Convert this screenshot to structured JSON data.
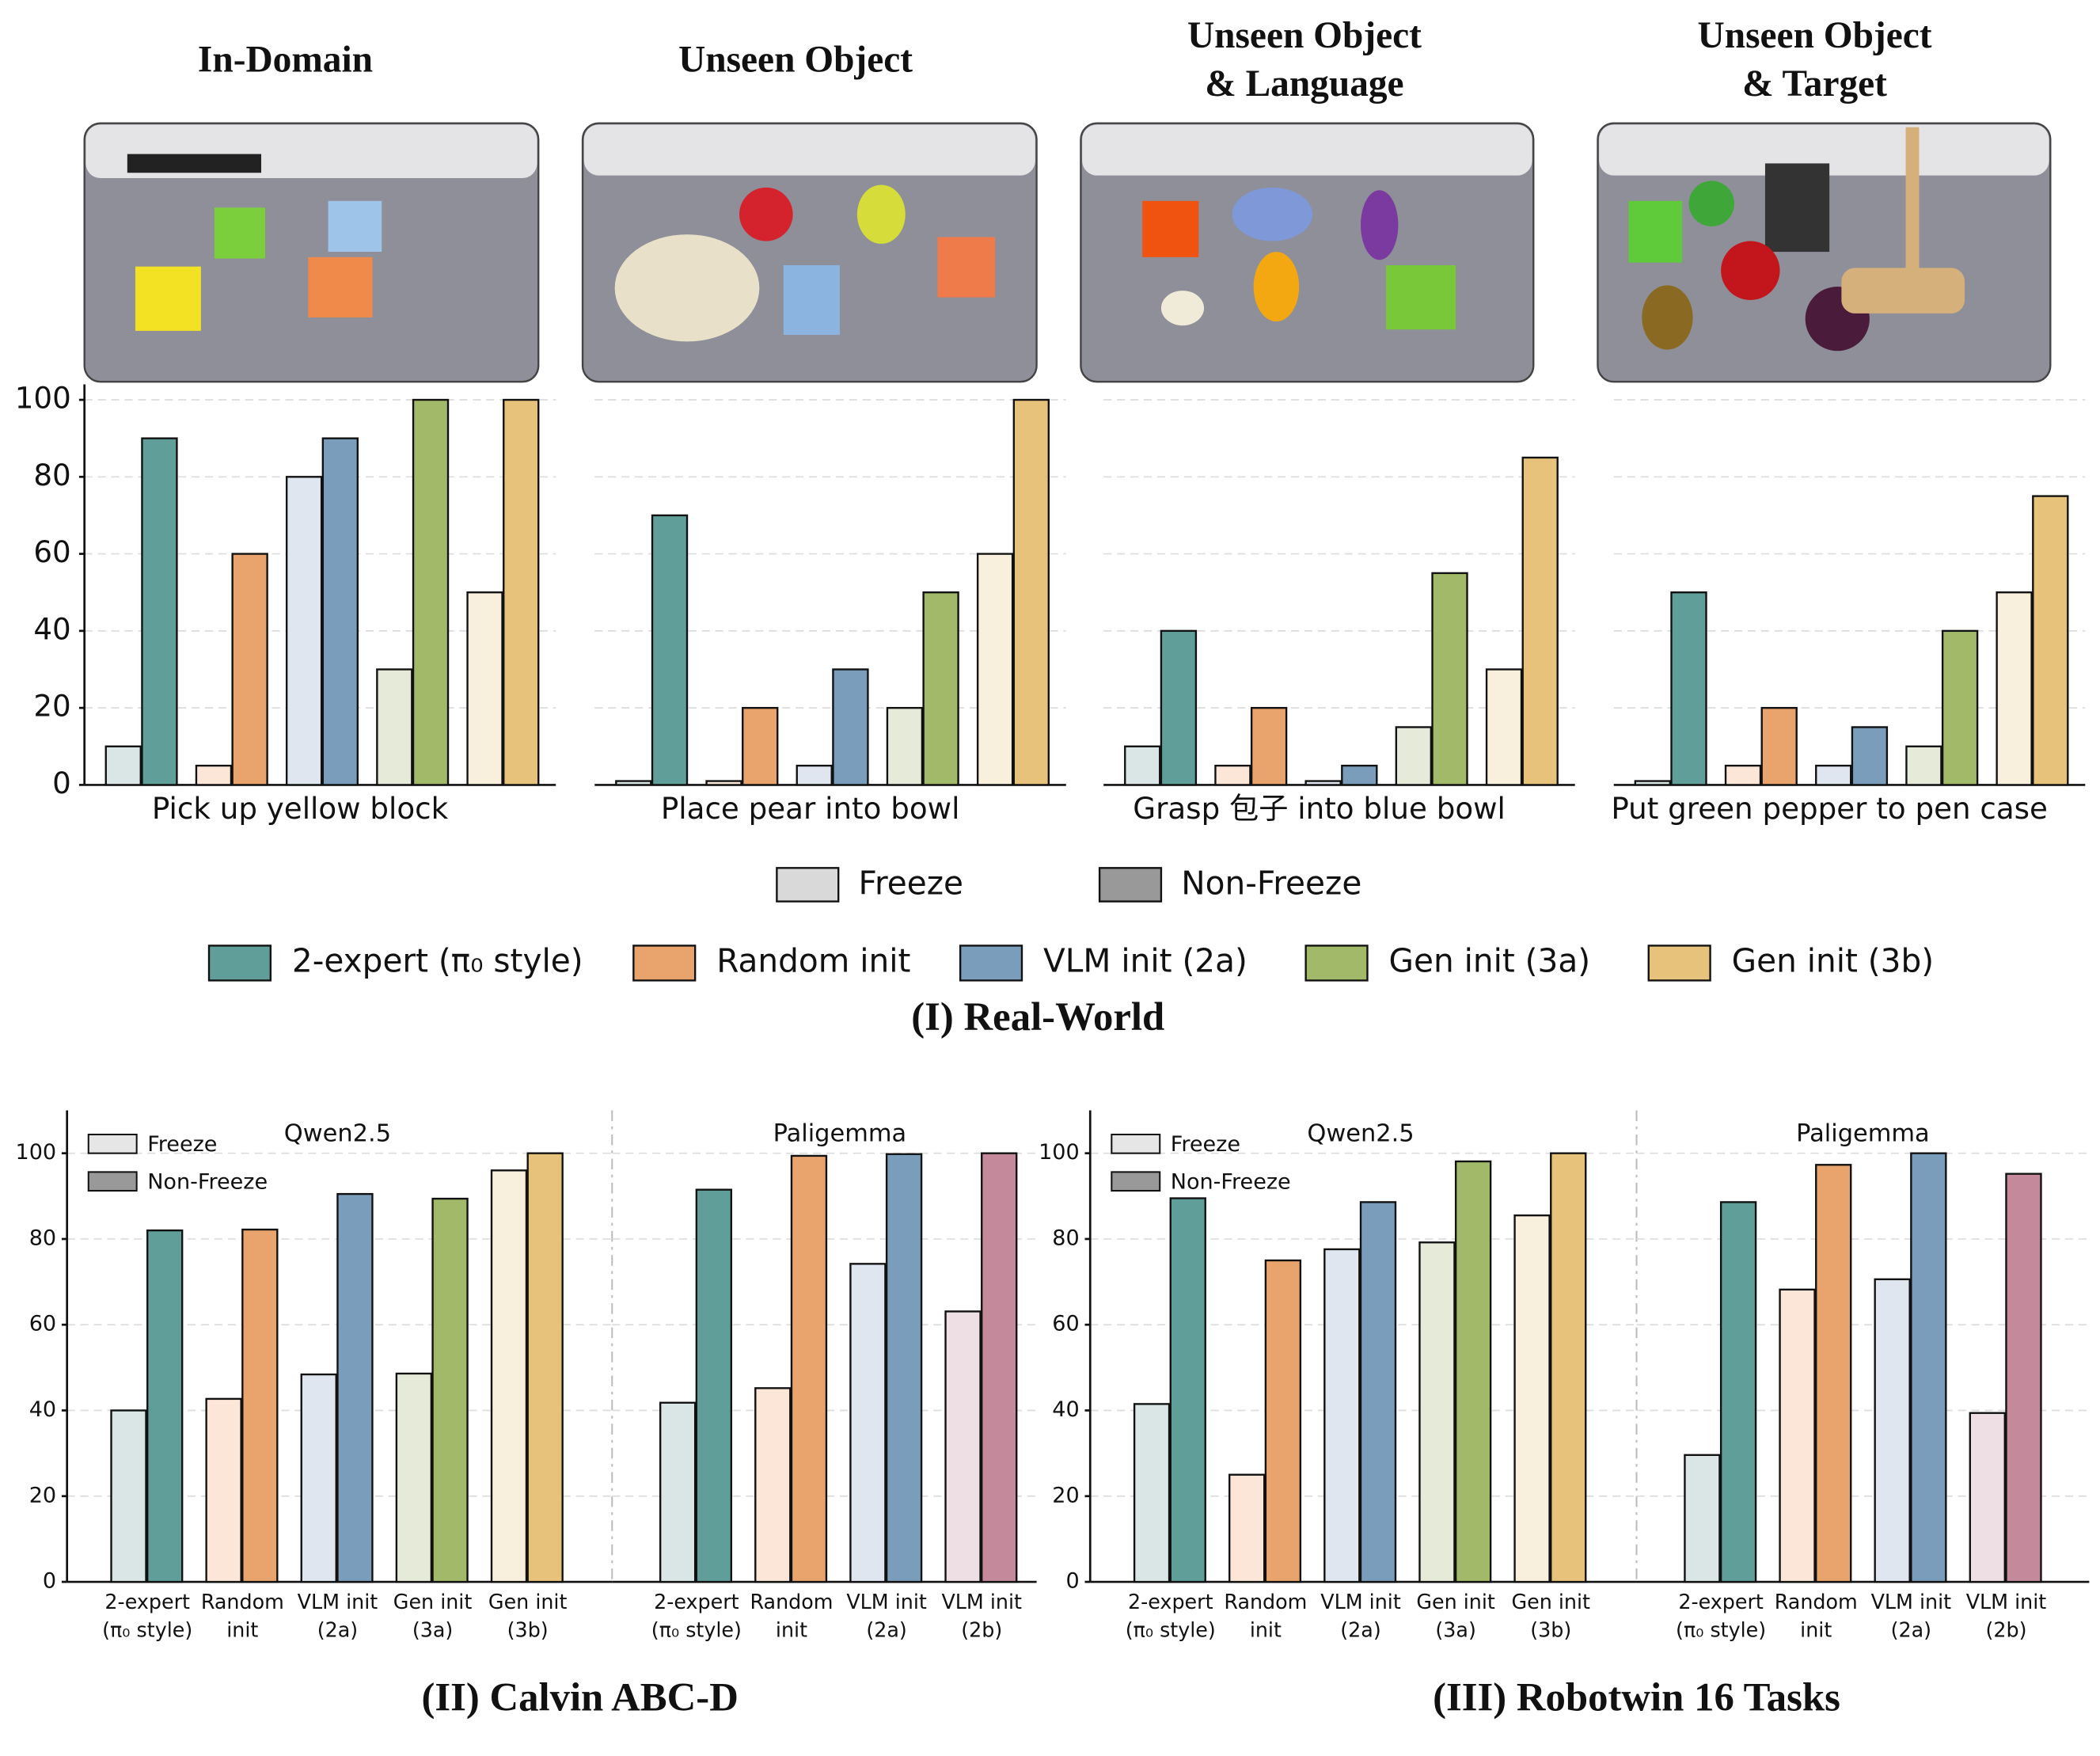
{
  "sections": [
    "(I) Real-World",
    "(II) Calvin ABC-D",
    "(III) Robotwin 16 Tasks"
  ],
  "legend": {
    "methods": [
      {
        "name": "2-expert (π₀ style)",
        "color": "#5f9e99"
      },
      {
        "name": "Random init",
        "color": "#e8a46c"
      },
      {
        "name": "VLM init (2a)",
        "color": "#7a9dbc"
      },
      {
        "name": "Gen init (3a)",
        "color": "#a2b96a"
      },
      {
        "name": "Gen init (3b)",
        "color": "#e6c27a"
      }
    ]
  },
  "chart_data": [
    {
      "type": "bar",
      "title": [
        "In-Domain"
      ],
      "xlabel": "Pick up yellow block",
      "ylim": [
        0,
        104
      ],
      "yticks": [
        0,
        20,
        40,
        60,
        80,
        100
      ],
      "grid": true,
      "show_tick_labels": true,
      "series": [
        {
          "name": "Freeze",
          "values": [
            10,
            5,
            80,
            30,
            50
          ],
          "colors": [
            "#d9e6e5",
            "#fbe6d8",
            "#dfe6ef",
            "#e6ead9",
            "#f8efdc"
          ]
        },
        {
          "name": "Non-Freeze",
          "values": [
            90,
            60,
            90,
            100,
            100
          ],
          "colors": [
            "#5f9e99",
            "#e8a46c",
            "#7a9dbc",
            "#a2b96a",
            "#e6c27a"
          ]
        }
      ]
    },
    {
      "type": "bar",
      "title": [
        "Unseen Object"
      ],
      "xlabel": "Place pear into bowl",
      "ylim": [
        0,
        104
      ],
      "yticks": [
        0,
        20,
        40,
        60,
        80,
        100
      ],
      "grid": true,
      "show_tick_labels": false,
      "series": [
        {
          "values": [
            1,
            1,
            5,
            20,
            60
          ],
          "colors": [
            "#d9e6e5",
            "#fbe6d8",
            "#dfe6ef",
            "#e6ead9",
            "#f8efdc"
          ]
        },
        {
          "values": [
            70,
            20,
            30,
            50,
            100
          ],
          "colors": [
            "#5f9e99",
            "#e8a46c",
            "#7a9dbc",
            "#a2b96a",
            "#e6c27a"
          ]
        }
      ]
    },
    {
      "type": "bar",
      "title": [
        "Unseen Object",
        "& Language"
      ],
      "xlabel": "Grasp 包子 into blue bowl",
      "ylim": [
        0,
        104
      ],
      "yticks": [
        0,
        20,
        40,
        60,
        80,
        100
      ],
      "grid": true,
      "show_tick_labels": false,
      "series": [
        {
          "values": [
            10,
            5,
            1,
            15,
            30
          ],
          "colors": [
            "#d9e6e5",
            "#fbe6d8",
            "#dfe6ef",
            "#e6ead9",
            "#f8efdc"
          ]
        },
        {
          "values": [
            40,
            20,
            5,
            55,
            85
          ],
          "colors": [
            "#5f9e99",
            "#e8a46c",
            "#7a9dbc",
            "#a2b96a",
            "#e6c27a"
          ]
        }
      ]
    },
    {
      "type": "bar",
      "title": [
        "Unseen Object",
        "& Target"
      ],
      "xlabel": "Put green pepper to pen case",
      "ylim": [
        0,
        104
      ],
      "yticks": [
        0,
        20,
        40,
        60,
        80,
        100
      ],
      "grid": true,
      "show_tick_labels": false,
      "series": [
        {
          "values": [
            1,
            5,
            5,
            10,
            50
          ],
          "colors": [
            "#d9e6e5",
            "#fbe6d8",
            "#dfe6ef",
            "#e6ead9",
            "#f8efdc"
          ]
        },
        {
          "values": [
            50,
            20,
            15,
            40,
            75
          ],
          "colors": [
            "#5f9e99",
            "#e8a46c",
            "#7a9dbc",
            "#a2b96a",
            "#e6c27a"
          ]
        }
      ]
    },
    {
      "type": "bar",
      "title": [
        "Qwen2.5"
      ],
      "ylim": [
        0,
        110
      ],
      "yticks": [
        0,
        20,
        40,
        60,
        80,
        100
      ],
      "grid": true,
      "show_tick_labels": true,
      "categories": [
        [
          "2-expert",
          "(π₀ style)"
        ],
        [
          "Random",
          "init"
        ],
        [
          "VLM init",
          "(2a)"
        ],
        [
          "Gen init",
          "(3a)"
        ],
        [
          "Gen init",
          "(3b)"
        ]
      ],
      "series": [
        {
          "name": "Freeze",
          "values": [
            40,
            42.7,
            48.4,
            48.6,
            96
          ],
          "colors": [
            "#d9e6e5",
            "#fbe6d8",
            "#dfe6ef",
            "#e6ead9",
            "#f8efdc"
          ]
        },
        {
          "name": "Non-Freeze",
          "values": [
            82,
            82.2,
            90.5,
            89.4,
            100
          ],
          "colors": [
            "#5f9e99",
            "#e8a46c",
            "#7a9dbc",
            "#a2b96a",
            "#e6c27a"
          ]
        }
      ]
    },
    {
      "type": "bar",
      "title": [
        "Paligemma"
      ],
      "ylim": [
        0,
        110
      ],
      "yticks": [
        0,
        20,
        40,
        60,
        80,
        100
      ],
      "grid": true,
      "show_tick_labels": false,
      "categories": [
        [
          "2-expert",
          "(π₀ style)"
        ],
        [
          "Random",
          "init"
        ],
        [
          "VLM init",
          "(2a)"
        ],
        [
          "VLM init",
          "(2b)"
        ]
      ],
      "series": [
        {
          "values": [
            41.8,
            45.2,
            74.2,
            63.1
          ],
          "colors": [
            "#d9e6e5",
            "#fbe6d8",
            "#dfe6ef",
            "#eddfe4"
          ]
        },
        {
          "values": [
            91.5,
            99.4,
            99.8,
            100
          ],
          "colors": [
            "#5f9e99",
            "#e8a46c",
            "#7a9dbc",
            "#c48a9b"
          ]
        }
      ]
    },
    {
      "type": "bar",
      "title": [
        "Qwen2.5"
      ],
      "ylim": [
        0,
        110
      ],
      "yticks": [
        0,
        20,
        40,
        60,
        80,
        100
      ],
      "grid": true,
      "show_tick_labels": true,
      "categories": [
        [
          "2-expert",
          "(π₀ style)"
        ],
        [
          "Random",
          "init"
        ],
        [
          "VLM init",
          "(2a)"
        ],
        [
          "Gen init",
          "(3a)"
        ],
        [
          "Gen init",
          "(3b)"
        ]
      ],
      "series": [
        {
          "name": "Freeze",
          "values": [
            41.5,
            25,
            77.6,
            79.2,
            85.5
          ],
          "colors": [
            "#d9e6e5",
            "#fbe6d8",
            "#dfe6ef",
            "#e6ead9",
            "#f8efdc"
          ]
        },
        {
          "name": "Non-Freeze",
          "values": [
            89.5,
            75,
            88.6,
            98.1,
            100
          ],
          "colors": [
            "#5f9e99",
            "#e8a46c",
            "#7a9dbc",
            "#a2b96a",
            "#e6c27a"
          ]
        }
      ]
    },
    {
      "type": "bar",
      "title": [
        "Paligemma"
      ],
      "ylim": [
        0,
        110
      ],
      "yticks": [
        0,
        20,
        40,
        60,
        80,
        100
      ],
      "grid": true,
      "show_tick_labels": false,
      "categories": [
        [
          "2-expert",
          "(π₀ style)"
        ],
        [
          "Random",
          "init"
        ],
        [
          "VLM init",
          "(2a)"
        ],
        [
          "VLM init",
          "(2b)"
        ]
      ],
      "series": [
        {
          "values": [
            29.6,
            68.2,
            70.6,
            39.4
          ],
          "colors": [
            "#d9e6e5",
            "#fbe6d8",
            "#dfe6ef",
            "#eddfe4"
          ]
        },
        {
          "values": [
            88.6,
            97.3,
            100,
            95.2
          ],
          "colors": [
            "#5f9e99",
            "#e8a46c",
            "#7a9dbc",
            "#c48a9b"
          ]
        }
      ]
    }
  ]
}
